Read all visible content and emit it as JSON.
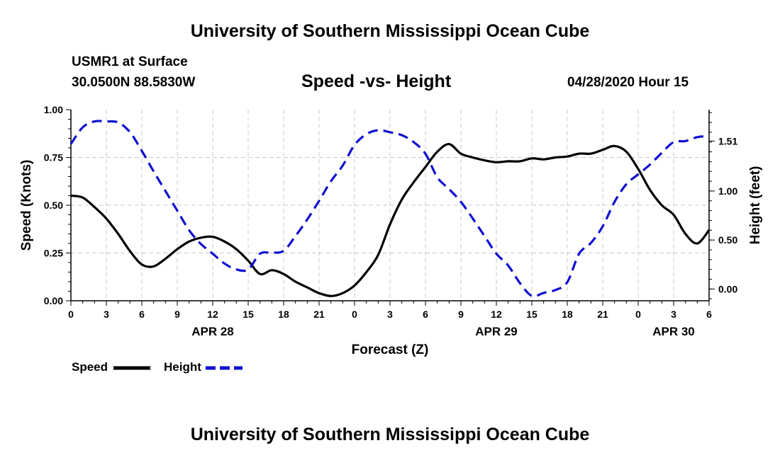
{
  "header": {
    "top_title": "University of Southern Mississippi Ocean Cube",
    "station": "USMR1 at Surface",
    "coords": "30.0500N 88.5830W",
    "chart_title": "Speed -vs- Height",
    "stamp": "04/28/2020 Hour 15"
  },
  "footer": {
    "bottom_title": "University of Southern Mississippi Ocean Cube"
  },
  "legend": {
    "speed": "Speed",
    "height": "Height"
  },
  "colors": {
    "speed": "#000000",
    "height": "#1010d0",
    "grid": "#c8c8c8"
  },
  "chart_data": {
    "type": "line",
    "title": "Speed -vs- Height",
    "xlabel": "Forecast (Z)",
    "ylabel": "Speed (Knots)",
    "y2label": "Height (feet)",
    "xlim": [
      0,
      54
    ],
    "ylim": [
      0,
      1.0
    ],
    "y2lim": [
      -0.12,
      1.83
    ],
    "x_ticks": [
      0,
      3,
      6,
      9,
      12,
      15,
      18,
      21,
      24,
      27,
      30,
      33,
      36,
      39,
      42,
      45,
      48,
      51,
      54
    ],
    "x_tick_labels": [
      "0",
      "3",
      "6",
      "9",
      "12",
      "15",
      "18",
      "21",
      "0",
      "3",
      "6",
      "9",
      "12",
      "15",
      "18",
      "21",
      "0",
      "3",
      "6"
    ],
    "day_labels": [
      {
        "x": 12,
        "label": "APR 28"
      },
      {
        "x": 36,
        "label": "APR 29"
      },
      {
        "x": 51,
        "label": "APR 30"
      }
    ],
    "y_ticks": [
      0,
      0.25,
      0.5,
      0.75,
      1.0
    ],
    "y_tick_labels": [
      "0.00",
      "0.25",
      "0.50",
      "0.75",
      "1.00"
    ],
    "y2_ticks": [
      0,
      0.5,
      1.0,
      1.51
    ],
    "y2_tick_labels": [
      "0.00",
      "0.50",
      "1.00",
      "1.51"
    ],
    "series": [
      {
        "name": "Speed",
        "axis": "left",
        "style": "solid",
        "x": [
          0,
          1,
          2,
          3,
          4,
          5,
          6,
          7,
          8,
          9,
          10,
          11,
          12,
          13,
          14,
          15,
          16,
          17,
          18,
          19,
          20,
          21,
          22,
          23,
          24,
          25,
          26,
          27,
          28,
          29,
          30,
          31,
          32,
          33,
          34,
          35,
          36,
          37,
          38,
          39,
          40,
          41,
          42,
          43,
          44,
          45,
          46,
          47,
          48,
          49,
          50,
          51,
          52,
          53,
          54
        ],
        "values": [
          0.55,
          0.54,
          0.49,
          0.43,
          0.35,
          0.26,
          0.19,
          0.18,
          0.22,
          0.27,
          0.31,
          0.33,
          0.335,
          0.31,
          0.27,
          0.21,
          0.14,
          0.16,
          0.14,
          0.1,
          0.07,
          0.04,
          0.025,
          0.04,
          0.08,
          0.15,
          0.24,
          0.4,
          0.53,
          0.62,
          0.7,
          0.78,
          0.82,
          0.77,
          0.75,
          0.735,
          0.725,
          0.73,
          0.73,
          0.745,
          0.74,
          0.75,
          0.755,
          0.77,
          0.77,
          0.79,
          0.81,
          0.78,
          0.69,
          0.58,
          0.5,
          0.45,
          0.35,
          0.3,
          0.37
        ]
      },
      {
        "name": "Height",
        "axis": "right",
        "style": "dashed",
        "x": [
          0,
          1,
          2,
          3,
          4,
          5,
          6,
          7,
          8,
          9,
          10,
          11,
          12,
          13,
          14,
          15,
          16,
          17,
          18,
          19,
          20,
          21,
          22,
          23,
          24,
          25,
          26,
          27,
          28,
          29,
          30,
          31,
          32,
          33,
          34,
          35,
          36,
          37,
          38,
          39,
          40,
          41,
          42,
          43,
          44,
          45,
          46,
          47,
          48,
          49,
          50,
          51,
          52,
          53,
          54
        ],
        "values": [
          1.48,
          1.65,
          1.71,
          1.71,
          1.7,
          1.6,
          1.41,
          1.2,
          1.0,
          0.8,
          0.6,
          0.46,
          0.36,
          0.26,
          0.2,
          0.2,
          0.36,
          0.37,
          0.39,
          0.54,
          0.71,
          0.9,
          1.1,
          1.26,
          1.47,
          1.58,
          1.62,
          1.6,
          1.57,
          1.5,
          1.38,
          1.14,
          1.02,
          0.89,
          0.72,
          0.54,
          0.36,
          0.24,
          0.06,
          -0.07,
          -0.04,
          -0.01,
          0.07,
          0.36,
          0.47,
          0.64,
          0.89,
          1.07,
          1.17,
          1.27,
          1.39,
          1.5,
          1.51,
          1.55,
          1.56
        ]
      }
    ]
  }
}
